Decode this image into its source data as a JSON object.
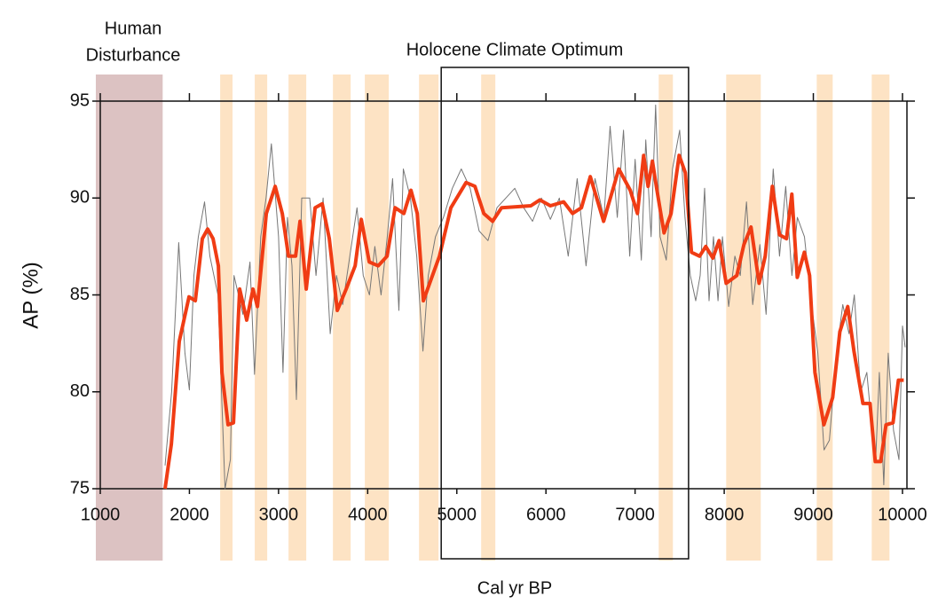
{
  "chart_data": {
    "type": "line",
    "title": "Holocene Climate Optimum",
    "xlabel": "Cal yr BP",
    "ylabel": "AP (%)",
    "xlim": [
      1000,
      10050
    ],
    "ylim": [
      75,
      95
    ],
    "xticks": [
      1000,
      2000,
      3000,
      4000,
      5000,
      6000,
      7000,
      8000,
      9000,
      10000
    ],
    "yticks": [
      75,
      80,
      85,
      90,
      95
    ],
    "optimum_range": [
      4825,
      7600
    ],
    "human_disturbance": {
      "label": [
        "Human",
        "Disturbance"
      ],
      "range": [
        950,
        1700
      ],
      "color": "#dcc2c2"
    },
    "bands": {
      "color": "#fde3c4",
      "ranges": [
        [
          2345,
          2484
        ],
        [
          2733,
          2873
        ],
        [
          3112,
          3311
        ],
        [
          3610,
          3809
        ],
        [
          3968,
          4237
        ],
        [
          4576,
          4795
        ],
        [
          5273,
          5432
        ],
        [
          7265,
          7424
        ],
        [
          8022,
          8410
        ],
        [
          9038,
          9217
        ],
        [
          9655,
          9854
        ]
      ]
    },
    "series": [
      {
        "color": "#777777",
        "width": 1,
        "x": [
          1727,
          1800,
          1880,
          1950,
          2000,
          2050,
          2100,
          2170,
          2230,
          2320,
          2400,
          2460,
          2500,
          2600,
          2680,
          2730,
          2800,
          2860,
          2920,
          3000,
          3050,
          3100,
          3150,
          3200,
          3260,
          3350,
          3420,
          3500,
          3580,
          3650,
          3720,
          3800,
          3880,
          3950,
          4020,
          4080,
          4150,
          4220,
          4280,
          4350,
          4400,
          4480,
          4550,
          4620,
          4680,
          4760,
          4850,
          4950,
          5050,
          5150,
          5250,
          5350,
          5450,
          5550,
          5650,
          5750,
          5850,
          5950,
          6050,
          6150,
          6250,
          6350,
          6450,
          6550,
          6650,
          6720,
          6800,
          6870,
          6940,
          7000,
          7070,
          7120,
          7180,
          7230,
          7280,
          7350,
          7420,
          7500,
          7560,
          7620,
          7680,
          7730,
          7780,
          7830,
          7880,
          7930,
          7980,
          8050,
          8120,
          8180,
          8250,
          8320,
          8400,
          8470,
          8550,
          8620,
          8690,
          8760,
          8820,
          8900,
          8980,
          9050,
          9120,
          9180,
          9260,
          9330,
          9400,
          9460,
          9530,
          9600,
          9660,
          9700,
          9740,
          9790,
          9840,
          9900,
          9960,
          10000,
          10030
        ],
        "values": [
          76.2,
          80,
          87.7,
          82,
          80.1,
          86,
          88,
          89.8,
          87,
          85,
          75,
          76.5,
          86,
          84,
          86.7,
          80.9,
          88,
          90,
          92.8,
          88,
          81,
          89,
          86.5,
          79.6,
          90,
          90,
          86,
          90,
          83,
          86,
          84.5,
          87,
          89.5,
          86,
          85,
          87.5,
          85,
          88,
          91,
          84.2,
          91.5,
          90,
          87,
          82.1,
          86,
          88,
          89,
          90.5,
          91.5,
          90.5,
          88.3,
          87.8,
          89.5,
          90,
          90.5,
          89.5,
          88.8,
          90,
          88.9,
          90,
          87,
          91,
          86.5,
          91,
          89,
          93.7,
          89,
          93.5,
          87,
          92,
          86.8,
          93,
          88,
          94.8,
          88,
          86.8,
          91.5,
          93.5,
          89,
          86,
          84.7,
          86,
          90.5,
          84.7,
          88,
          84.7,
          88,
          84.4,
          87,
          86,
          89.8,
          84.5,
          87.6,
          84,
          91.5,
          87,
          90.6,
          86,
          89,
          88,
          84.5,
          82,
          77,
          77.5,
          82,
          84.5,
          83,
          85,
          80,
          81,
          78,
          76.5,
          81,
          75.2,
          82,
          78,
          76.5,
          83.4,
          82.3
        ]
      },
      {
        "color": "#f03c14",
        "width": 4,
        "x": [
          1727,
          1797,
          1886,
          1996,
          2066,
          2145,
          2205,
          2265,
          2325,
          2365,
          2434,
          2494,
          2564,
          2643,
          2713,
          2763,
          2863,
          2962,
          3042,
          3112,
          3191,
          3241,
          3311,
          3410,
          3490,
          3570,
          3659,
          3759,
          3859,
          3928,
          4018,
          4118,
          4218,
          4307,
          4406,
          4486,
          4556,
          4625,
          4805,
          4934,
          5104,
          5203,
          5303,
          5402,
          5502,
          5831,
          5931,
          6050,
          6199,
          6299,
          6398,
          6498,
          6647,
          6817,
          6946,
          7026,
          7096,
          7146,
          7195,
          7245,
          7325,
          7404,
          7494,
          7564,
          7633,
          7723,
          7793,
          7873,
          7942,
          8022,
          8141,
          8221,
          8301,
          8391,
          8460,
          8540,
          8620,
          8699,
          8759,
          8819,
          8899,
          8958,
          9018,
          9118,
          9217,
          9297,
          9386,
          9456,
          9556,
          9636,
          9695,
          9755,
          9815,
          9894,
          9954,
          10014
        ],
        "values": [
          75,
          77.3,
          82.6,
          84.9,
          84.7,
          87.9,
          88.4,
          87.9,
          86.5,
          81,
          78.3,
          78.4,
          85.3,
          83.7,
          85.3,
          84.4,
          89.2,
          90.6,
          89.2,
          87,
          87,
          88.8,
          85.3,
          89.5,
          89.7,
          87.9,
          84.2,
          85.3,
          86.5,
          88.9,
          86.7,
          86.5,
          87,
          89.5,
          89.2,
          90.4,
          89.2,
          84.7,
          87,
          89.5,
          90.8,
          90.6,
          89.2,
          88.8,
          89.5,
          89.6,
          89.9,
          89.6,
          89.8,
          89.2,
          89.5,
          91.1,
          88.8,
          91.5,
          90.4,
          89.2,
          92.2,
          90.6,
          91.9,
          90.4,
          88.2,
          89.2,
          92.2,
          91.3,
          87.2,
          87,
          87.5,
          86.9,
          87.8,
          85.6,
          86,
          87.6,
          88.5,
          85.6,
          87,
          90.6,
          88.1,
          87.9,
          90.2,
          85.9,
          87.2,
          86,
          81,
          78.3,
          79.7,
          83.1,
          84.4,
          82.1,
          79.4,
          79.4,
          76.4,
          76.4,
          78.3,
          78.4,
          80.6,
          80.6
        ]
      }
    ]
  }
}
